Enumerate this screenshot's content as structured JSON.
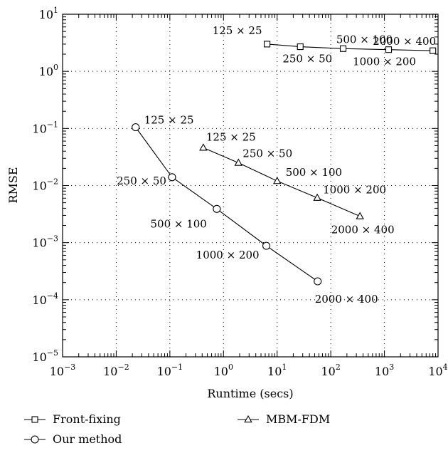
{
  "chart_data": {
    "type": "scatter",
    "xlabel": "Runtime (secs)",
    "ylabel": "RMSE",
    "xscale": "log",
    "yscale": "log",
    "xlim": [
      0.001,
      10000
    ],
    "ylim": [
      1e-05,
      10
    ],
    "grid": "dotted",
    "legend_position": "bottom",
    "x_tick_labels": [
      {
        "value": 0.001,
        "base": "10",
        "exp": "−3"
      },
      {
        "value": 0.01,
        "base": "10",
        "exp": "−2"
      },
      {
        "value": 0.1,
        "base": "10",
        "exp": "−1"
      },
      {
        "value": 1,
        "base": "10",
        "exp": "0"
      },
      {
        "value": 10,
        "base": "10",
        "exp": "1"
      },
      {
        "value": 100,
        "base": "10",
        "exp": "2"
      },
      {
        "value": 1000,
        "base": "10",
        "exp": "3"
      },
      {
        "value": 10000,
        "base": "10",
        "exp": "4"
      }
    ],
    "y_tick_labels": [
      {
        "value": 1e-05,
        "base": "10",
        "exp": "−5"
      },
      {
        "value": 0.0001,
        "base": "10",
        "exp": "−4"
      },
      {
        "value": 0.001,
        "base": "10",
        "exp": "−3"
      },
      {
        "value": 0.01,
        "base": "10",
        "exp": "−2"
      },
      {
        "value": 0.1,
        "base": "10",
        "exp": "−1"
      },
      {
        "value": 1,
        "base": "10",
        "exp": "0"
      },
      {
        "value": 10,
        "base": "10",
        "exp": "1"
      }
    ],
    "series": [
      {
        "name": "Front-fixing",
        "marker": "square",
        "points": [
          {
            "x": 6.5,
            "y": 3.0,
            "label": "125 × 25"
          },
          {
            "x": 27,
            "y": 2.7,
            "label": "250 × 50"
          },
          {
            "x": 170,
            "y": 2.5,
            "label": "500 × 100"
          },
          {
            "x": 1200,
            "y": 2.4,
            "label": "1000 × 200"
          },
          {
            "x": 8000,
            "y": 2.3,
            "label": "2000 × 400"
          }
        ]
      },
      {
        "name": "MBM-FDM",
        "marker": "triangle",
        "points": [
          {
            "x": 0.42,
            "y": 0.046,
            "label": "125 × 25"
          },
          {
            "x": 1.9,
            "y": 0.025,
            "label": "250 × 50"
          },
          {
            "x": 10,
            "y": 0.012,
            "label": "500 × 100"
          },
          {
            "x": 56,
            "y": 0.0061,
            "label": "1000 × 200"
          },
          {
            "x": 350,
            "y": 0.0029,
            "label": "2000 × 400"
          }
        ]
      },
      {
        "name": "Our method",
        "marker": "circle",
        "points": [
          {
            "x": 0.023,
            "y": 0.105,
            "label": "125 × 25"
          },
          {
            "x": 0.11,
            "y": 0.014,
            "label": "250 × 50"
          },
          {
            "x": 0.75,
            "y": 0.0039,
            "label": "500 × 100"
          },
          {
            "x": 6.3,
            "y": 0.00088,
            "label": "1000 × 200"
          },
          {
            "x": 57,
            "y": 0.00021,
            "label": "2000 × 400"
          }
        ]
      }
    ]
  }
}
